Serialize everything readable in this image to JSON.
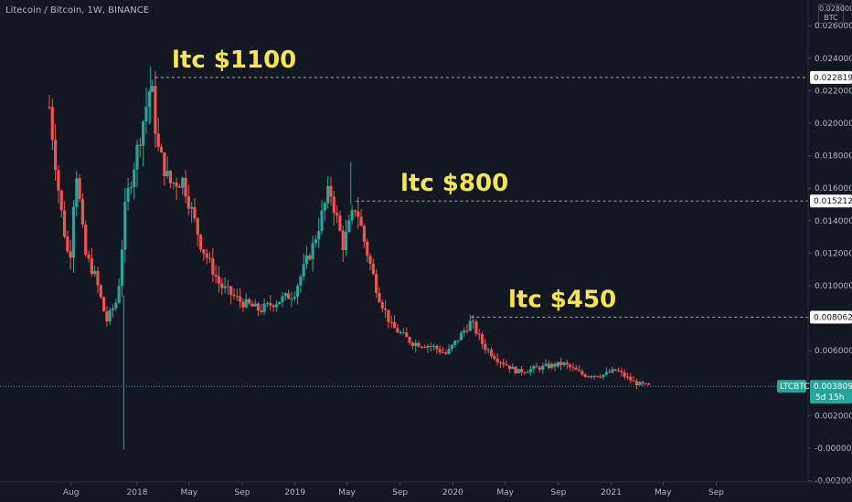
{
  "header": {
    "title": "Litecoin / Bitcoin, 1W, BINANCE",
    "currency_top": "0.028000",
    "currency_bottom": "BTC"
  },
  "colors": {
    "background": "#131722",
    "up": "#26a69a",
    "down": "#ef5350",
    "annotation": "#f5e64b",
    "dashed_line": "#d1d4dc",
    "grid": "#1e222d"
  },
  "chart_data": {
    "type": "candlestick",
    "title": "Litecoin / Bitcoin, 1W, BINANCE",
    "ylabel": "BTC",
    "ylim": [
      -0.0022,
      0.028
    ],
    "y_ticks": [
      "0.026000",
      "0.024000",
      "0.022000",
      "0.020000",
      "0.018000",
      "0.016000",
      "0.014000",
      "0.012000",
      "0.010000",
      "0.008000",
      "0.006000",
      "0.004000",
      "0.002000",
      "-0.000000",
      "-0.002000"
    ],
    "x_ticks": [
      "Aug",
      "2018",
      "May",
      "Sep",
      "2019",
      "May",
      "Sep",
      "2020",
      "May",
      "Sep",
      "2021",
      "May",
      "Sep"
    ],
    "grid": false,
    "series": [
      {
        "name": "LTCBTC",
        "close_path": [
          {
            "date": "2017-06-15",
            "value": 0.021
          },
          {
            "date": "2017-07-10",
            "value": 0.015
          },
          {
            "date": "2017-08-01",
            "value": 0.0112
          },
          {
            "date": "2017-08-15",
            "value": 0.0175
          },
          {
            "date": "2017-09-05",
            "value": 0.012
          },
          {
            "date": "2017-09-30",
            "value": 0.0105
          },
          {
            "date": "2017-10-25",
            "value": 0.0078
          },
          {
            "date": "2017-11-20",
            "value": 0.0092
          },
          {
            "date": "2017-12-08",
            "value": 0.015
          },
          {
            "date": "2018-01-05",
            "value": 0.0185
          },
          {
            "date": "2018-02-05",
            "value": 0.0225
          },
          {
            "date": "2018-02-20",
            "value": 0.0185
          },
          {
            "date": "2018-03-20",
            "value": 0.0163
          },
          {
            "date": "2018-04-20",
            "value": 0.0165
          },
          {
            "date": "2018-06-01",
            "value": 0.0125
          },
          {
            "date": "2018-07-15",
            "value": 0.01
          },
          {
            "date": "2018-09-01",
            "value": 0.009
          },
          {
            "date": "2018-10-15",
            "value": 0.0085
          },
          {
            "date": "2018-11-20",
            "value": 0.009
          },
          {
            "date": "2019-01-01",
            "value": 0.0095
          },
          {
            "date": "2019-02-15",
            "value": 0.0125
          },
          {
            "date": "2019-03-25",
            "value": 0.016
          },
          {
            "date": "2019-04-25",
            "value": 0.0125
          },
          {
            "date": "2019-05-25",
            "value": 0.015
          },
          {
            "date": "2019-06-15",
            "value": 0.0125
          },
          {
            "date": "2019-07-15",
            "value": 0.0095
          },
          {
            "date": "2019-08-15",
            "value": 0.0075
          },
          {
            "date": "2019-10-01",
            "value": 0.0065
          },
          {
            "date": "2019-11-15",
            "value": 0.0063
          },
          {
            "date": "2019-12-20",
            "value": 0.0058
          },
          {
            "date": "2020-02-15",
            "value": 0.0078
          },
          {
            "date": "2020-03-15",
            "value": 0.0063
          },
          {
            "date": "2020-04-15",
            "value": 0.0055
          },
          {
            "date": "2020-06-01",
            "value": 0.0047
          },
          {
            "date": "2020-08-01",
            "value": 0.005
          },
          {
            "date": "2020-09-15",
            "value": 0.0052
          },
          {
            "date": "2020-11-01",
            "value": 0.0045
          },
          {
            "date": "2020-12-15",
            "value": 0.0045
          },
          {
            "date": "2021-01-15",
            "value": 0.0048
          },
          {
            "date": "2021-03-01",
            "value": 0.004
          },
          {
            "date": "2021-04-05",
            "value": 0.0038
          }
        ],
        "last_value": "0.003809",
        "countdown": "5d 15h"
      }
    ],
    "annotations": [
      {
        "text": "ltc $1100",
        "value": 0.022819,
        "label": "0.022819"
      },
      {
        "text": "ltc $800",
        "value": 0.015212,
        "label": "0.015212"
      },
      {
        "text": "ltc $450",
        "value": 0.008062,
        "label": "0.008062"
      }
    ]
  }
}
